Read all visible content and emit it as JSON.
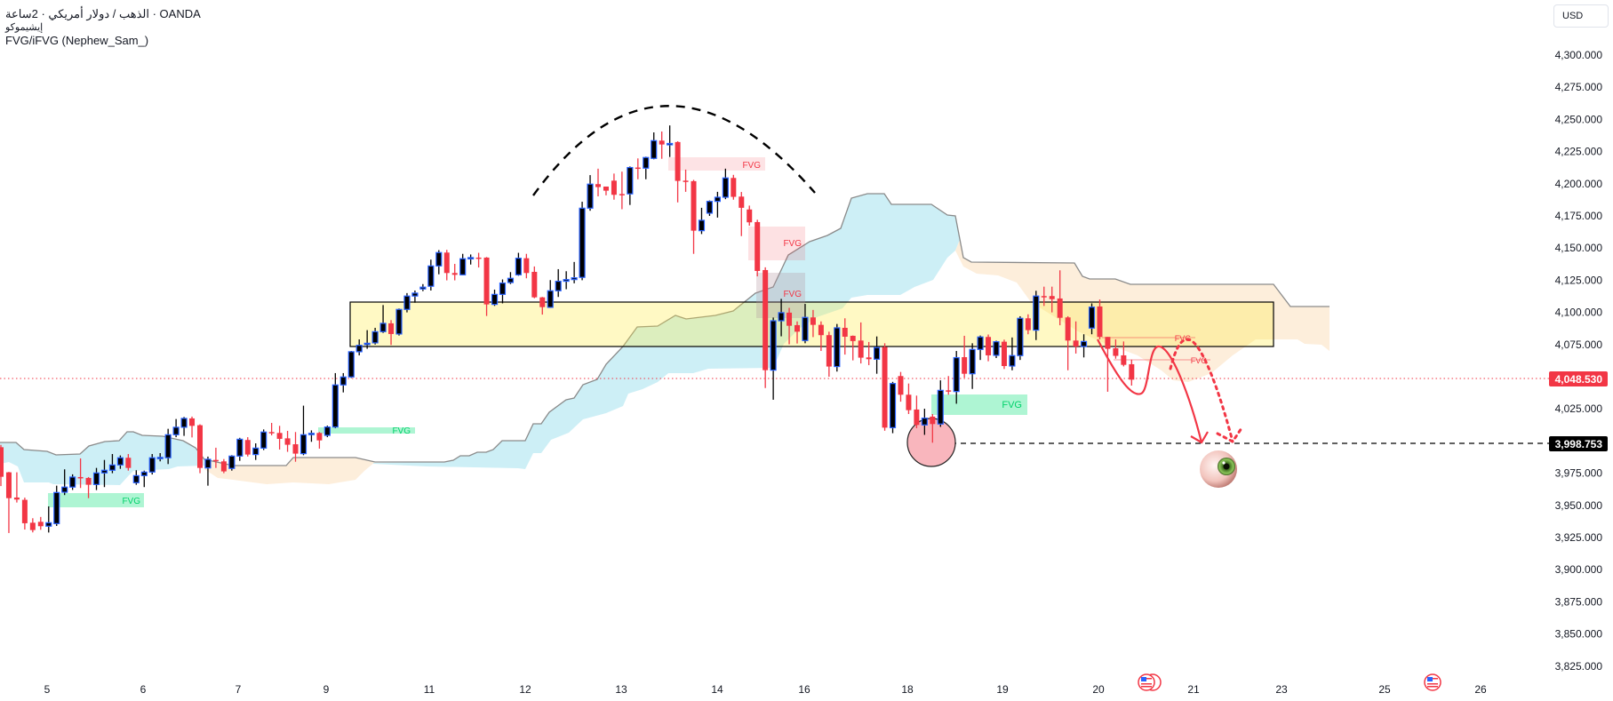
{
  "header": {
    "line1_symbol": "الذهب / دولار أمريكي · 2ساعة · OANDA",
    "line2_indicator": "إيشيموكو",
    "line3_indicator": "FVG/iFVG (Nephew_Sam_)"
  },
  "currency_button": "USD",
  "colors": {
    "bull_body": "#000000",
    "bull_border": "#2962ff",
    "bear": "#f23645",
    "cloud_bull": "#cdeff6",
    "cloud_bear": "#fdebd3",
    "fvg_bear": "#f23645",
    "fvg_bull": "#00e676",
    "zone": "#fff59d"
  },
  "chart_data": {
    "type": "candlestick",
    "symbol": "XAUUSD",
    "timeframe": "2H",
    "ylim": [
      3812,
      4310
    ],
    "price_ticks": [
      "4,300.000",
      "4,275.000",
      "4,250.000",
      "4,225.000",
      "4,200.000",
      "4,175.000",
      "4,150.000",
      "4,125.000",
      "4,100.000",
      "4,075.000",
      "4,025.000",
      "3,975.000",
      "3,950.000",
      "3,925.000",
      "3,900.000",
      "3,875.000",
      "3,850.000",
      "3,825.000"
    ],
    "time_ticks": [
      "5",
      "6",
      "7",
      "9",
      "11",
      "12",
      "13",
      "14",
      "16",
      "18",
      "19",
      "20",
      "21",
      "23",
      "25",
      "26"
    ],
    "last_price_label": "4,048.530",
    "target_price_label": "3,998.753",
    "last_price": 4048.53,
    "target_price": 3998.753,
    "candles_ohlc": [
      [
        3995.2,
        3997,
        3965,
        3972.2
      ],
      [
        3975.7,
        3976,
        3928.5,
        3955.6
      ],
      [
        3956.1,
        3975.7,
        3952.2,
        3954.5
      ],
      [
        3954.3,
        3956,
        3931.2,
        3936.1
      ],
      [
        3936.5,
        3940,
        3929,
        3930.8
      ],
      [
        3937.2,
        3941,
        3931,
        3933.8
      ],
      [
        3933.8,
        3949.2,
        3928.9,
        3936.5
      ],
      [
        3935.8,
        3965.3,
        3934,
        3960.0
      ],
      [
        3960.2,
        3978,
        3958,
        3964.2
      ],
      [
        3964.2,
        3974.1,
        3962,
        3972.0
      ],
      [
        3972.0,
        3986.5,
        3963.5,
        3971.6
      ],
      [
        3971.3,
        3972,
        3955.6,
        3966.0
      ],
      [
        3966.2,
        3979.1,
        3961.9,
        3975.2
      ],
      [
        3975.2,
        3985.3,
        3964.2,
        3977.3
      ],
      [
        3977.3,
        3989.9,
        3975,
        3981.4
      ],
      [
        3981.4,
        3988.8,
        3978.4,
        3987.0
      ],
      [
        3987.0,
        3989.9,
        3977,
        3979.1
      ],
      [
        3967.6,
        3977.3,
        3966.0,
        3973.1
      ],
      [
        3973.1,
        3977,
        3964.2,
        3975.9
      ],
      [
        3975.9,
        3989.9,
        3974,
        3987.0
      ],
      [
        3987.0,
        3990.6,
        3984.2,
        3987.3
      ],
      [
        3987.0,
        4009.5,
        3982.1,
        4004.9
      ],
      [
        4004.9,
        4017.1,
        4003,
        4010.7
      ],
      [
        4010.7,
        4018.7,
        4004,
        4017.6
      ],
      [
        4017.6,
        4019,
        4002.8,
        4011.8
      ],
      [
        4012.3,
        4013,
        3975,
        3979.1
      ],
      [
        3979.1,
        3987.9,
        3965.3,
        3985.8
      ],
      [
        3985.3,
        3994.8,
        3979.1,
        3984.9
      ],
      [
        3984.2,
        3986,
        3975,
        3976.4
      ],
      [
        3978.7,
        3989,
        3977,
        3988.3
      ],
      [
        3988.3,
        4002.5,
        3984.6,
        4001.4
      ],
      [
        4000.8,
        4003,
        3988,
        3989.5
      ],
      [
        3989.5,
        3998.2,
        3985.3,
        3994.5
      ],
      [
        3994.5,
        4009,
        3993,
        4007.0
      ],
      [
        4007.0,
        4014.1,
        4004.4,
        4006.3
      ],
      [
        4006.3,
        4011.8,
        3993.4,
        4001.7
      ],
      [
        4002.1,
        4007.9,
        3991.6,
        3997.1
      ],
      [
        3997.5,
        4007.0,
        3983.9,
        3990.2
      ],
      [
        3990.2,
        4027.5,
        3989,
        4004.9
      ],
      [
        4005.1,
        4008.3,
        3999.4,
        4006.0
      ],
      [
        4006.3,
        4007,
        3994.1,
        4000.5
      ],
      [
        4004.4,
        4012,
        4003,
        4010.9
      ],
      [
        4010.9,
        4052.8,
        4010,
        4043.6
      ],
      [
        4043.6,
        4052.8,
        4037.8,
        4049.8
      ],
      [
        4049.8,
        4070,
        4049,
        4069.4
      ],
      [
        4069.4,
        4079,
        4066.6,
        4074.4
      ],
      [
        4075.4,
        4086.2,
        4071.7,
        4076.0
      ],
      [
        4076.3,
        4088,
        4075,
        4085.0
      ],
      [
        4085.0,
        4105.7,
        4084,
        4091.5
      ],
      [
        4091.5,
        4094,
        4074.7,
        4083.2
      ],
      [
        4083.2,
        4103,
        4082,
        4102.3
      ],
      [
        4102.3,
        4115,
        4100,
        4112.7
      ],
      [
        4112.7,
        4117,
        4107.5,
        4115.0
      ],
      [
        4118.2,
        4122,
        4116.5,
        4119.6
      ],
      [
        4120.3,
        4141,
        4117,
        4136.1
      ],
      [
        4136.1,
        4148.4,
        4129.6,
        4146.5
      ],
      [
        4146.5,
        4148.6,
        4124.9,
        4130.6
      ],
      [
        4130.6,
        4137.7,
        4124.9,
        4129.2
      ],
      [
        4129.2,
        4145.5,
        4129,
        4141.7
      ],
      [
        4141.7,
        4145,
        4137.2,
        4142.6
      ],
      [
        4142.6,
        4146.3,
        4134.9,
        4142.1
      ],
      [
        4142.6,
        4143,
        4097.2,
        4106.2
      ],
      [
        4106.2,
        4117.7,
        4105,
        4114.0
      ],
      [
        4114.0,
        4125.6,
        4107,
        4122.8
      ],
      [
        4123.2,
        4131.3,
        4122,
        4126.5
      ],
      [
        4129.2,
        4146.3,
        4128.5,
        4142.1
      ],
      [
        4142.1,
        4145.5,
        4126.5,
        4130.6
      ],
      [
        4131.5,
        4135.7,
        4111,
        4111.7
      ],
      [
        4111.7,
        4112,
        4098.3,
        4104.1
      ],
      [
        4103.9,
        4125.1,
        4103.5,
        4116.8
      ],
      [
        4116.8,
        4133.6,
        4112.0,
        4124.2
      ],
      [
        4124.2,
        4132,
        4118,
        4125.5
      ],
      [
        4125.5,
        4139.2,
        4122.6,
        4126.9
      ],
      [
        4127.2,
        4186,
        4125,
        4181.0
      ],
      [
        4181.0,
        4206.7,
        4179,
        4199.7
      ],
      [
        4199.7,
        4211.7,
        4190.2,
        4197.4
      ],
      [
        4197.8,
        4196,
        4191,
        4194.6
      ],
      [
        4202.4,
        4207.9,
        4187.6,
        4191.4
      ],
      [
        4192,
        4209.4,
        4180.2,
        4191.8
      ],
      [
        4192.1,
        4213.4,
        4183.5,
        4212.6
      ],
      [
        4212.6,
        4219.7,
        4203.5,
        4212.1
      ],
      [
        4212.1,
        4221,
        4203.5,
        4220.4
      ],
      [
        4219.7,
        4239.9,
        4219,
        4233.5
      ],
      [
        4233.5,
        4240.6,
        4219.4,
        4230.5
      ],
      [
        4231.2,
        4245.3,
        4220.8,
        4231.3
      ],
      [
        4232.4,
        4233,
        4185.5,
        4202.2
      ],
      [
        4202.4,
        4211,
        4193.7,
        4202.0
      ],
      [
        4202.0,
        4203,
        4145.5,
        4163.5
      ],
      [
        4163.5,
        4181.3,
        4160.9,
        4171.6
      ],
      [
        4177.1,
        4187,
        4175,
        4186.3
      ],
      [
        4186.3,
        4193.7,
        4173.7,
        4189.5
      ],
      [
        4189.5,
        4211.7,
        4188,
        4204.5
      ],
      [
        4204.5,
        4206.9,
        4187.6,
        4189.8
      ],
      [
        4190.0,
        4193.6,
        4159.3,
        4181.3
      ],
      [
        4180,
        4183,
        4167.4,
        4170
      ],
      [
        4170.2,
        4172,
        4128,
        4132.2
      ],
      [
        4132.9,
        4135,
        4041.2,
        4055.1
      ],
      [
        4055.1,
        4096,
        4032.1,
        4093.5
      ],
      [
        4093.5,
        4110.5,
        4081.4,
        4099.8
      ],
      [
        4099.8,
        4103.5,
        4075.2,
        4089.6
      ],
      [
        4090.1,
        4093,
        4075.8,
        4085.0
      ],
      [
        4078.1,
        4106.6,
        4076,
        4096.1
      ],
      [
        4096.1,
        4101.9,
        4080.8,
        4090.3
      ],
      [
        4090.3,
        4093,
        4070,
        4082.3
      ],
      [
        4082.3,
        4085,
        4050,
        4057.9
      ],
      [
        4057.9,
        4091,
        4054,
        4088.0
      ],
      [
        4088.0,
        4095.4,
        4067.2,
        4081.1
      ],
      [
        4081.8,
        4082,
        4062.7,
        4077.7
      ],
      [
        4078.1,
        4092.2,
        4060.3,
        4064.8
      ],
      [
        4065.0,
        4077,
        4059,
        4063.6
      ],
      [
        4063.6,
        4081.3,
        4052.3,
        4072.6
      ],
      [
        4073.1,
        4076,
        4008,
        4010.4
      ],
      [
        4010.4,
        4046,
        4006.1,
        4044.7
      ],
      [
        4050.5,
        4053.7,
        4030.6,
        4036.0
      ],
      [
        4036.0,
        4044.7,
        4021,
        4024.0
      ],
      [
        4024.5,
        4035.3,
        4010,
        4012.5
      ],
      [
        4012.5,
        4025.1,
        4004.8,
        4017.8
      ],
      [
        4019,
        4021,
        3998.7,
        4013.2
      ],
      [
        4013.2,
        4047.2,
        4011,
        4039.4
      ],
      [
        4039.4,
        4050.5,
        4036,
        4038.5
      ],
      [
        4038.5,
        4070,
        4029,
        4064.8
      ],
      [
        4065.2,
        4081.8,
        4049.2,
        4052.3
      ],
      [
        4052.3,
        4076,
        4040.5,
        4071.2
      ],
      [
        4071.2,
        4082,
        4063,
        4080.9
      ],
      [
        4080.9,
        4082.8,
        4062,
        4066.6
      ],
      [
        4066.6,
        4078,
        4064.5,
        4077.2
      ],
      [
        4077.2,
        4078.8,
        4056,
        4058.3
      ],
      [
        4058.3,
        4080.5,
        4055,
        4066.4
      ],
      [
        4066.4,
        4097,
        4063,
        4095.4
      ],
      [
        4095.4,
        4098.5,
        4083,
        4086.2
      ],
      [
        4086.2,
        4116.8,
        4078.5,
        4112.7
      ],
      [
        4112.7,
        4120,
        4105,
        4112.2
      ],
      [
        4112.7,
        4120,
        4100,
        4110.3
      ],
      [
        4110.8,
        4132.7,
        4090,
        4095.8
      ],
      [
        4096.1,
        4097,
        4055,
        4078.1
      ],
      [
        4078.1,
        4093,
        4068,
        4073.5
      ],
      [
        4073.5,
        4083,
        4065,
        4077.4
      ],
      [
        4087.8,
        4107,
        4083,
        4104.1
      ],
      [
        4104.6,
        4110,
        4079,
        4080.9
      ],
      [
        4080.9,
        4080.9,
        4038.3,
        4071.7
      ],
      [
        4072.1,
        4079,
        4064,
        4066.2
      ],
      [
        4066.6,
        4077.4,
        4058,
        4059.2
      ],
      [
        4059.7,
        4063.2,
        4043.1,
        4047.7
      ]
    ],
    "annotations": {
      "fvg_label": "FVG",
      "grid": false
    }
  }
}
